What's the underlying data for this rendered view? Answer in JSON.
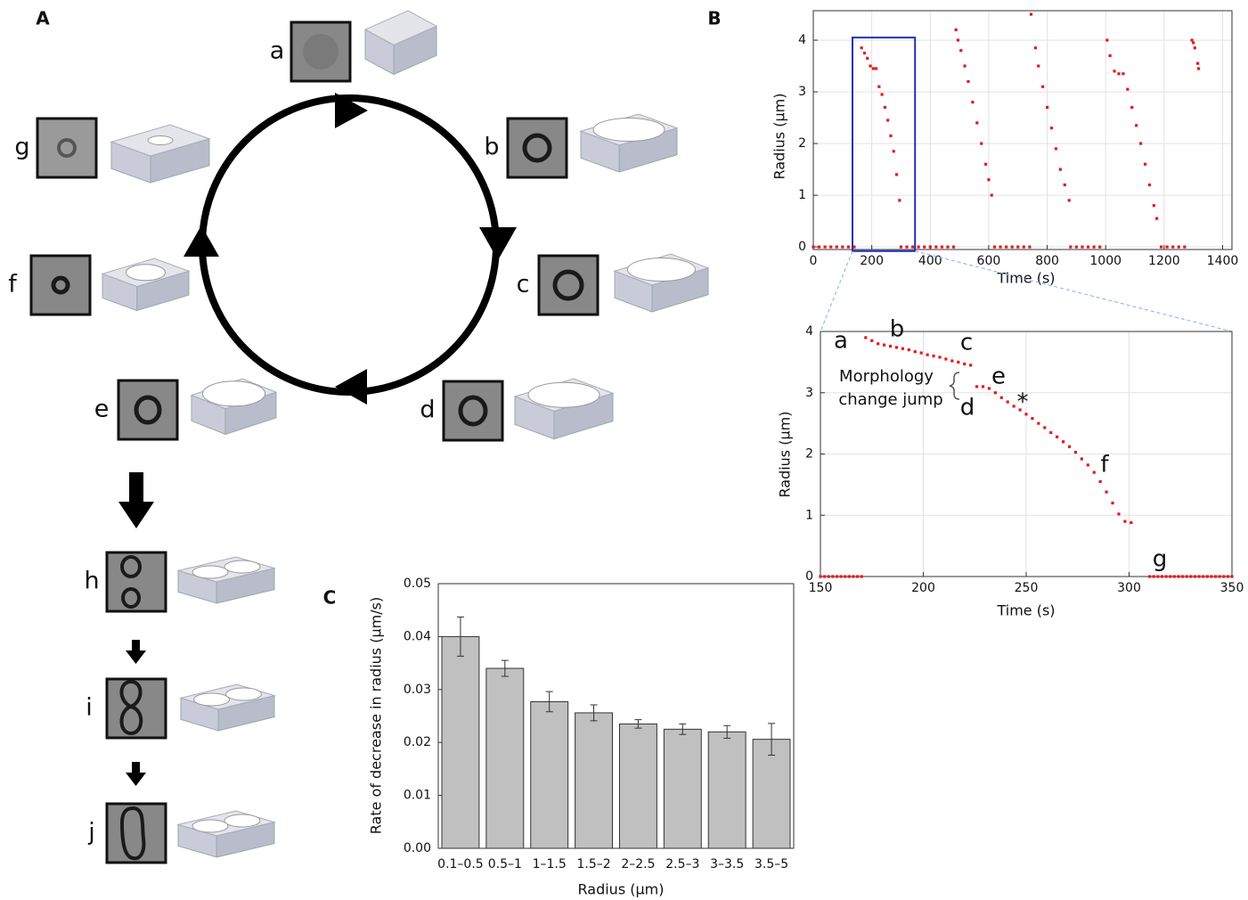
{
  "panel_labels": [
    "A",
    "B",
    "C"
  ],
  "diagram": {
    "labels": [
      "a",
      "b",
      "c",
      "d",
      "e",
      "f",
      "g",
      "h",
      "i",
      "j"
    ]
  },
  "chart_data": [
    {
      "type": "scatter",
      "xlabel": "Time (s)",
      "ylabel": "Radius (μm)",
      "xlim": [
        0,
        1432
      ],
      "ylim": [
        -0.05,
        4.57
      ],
      "xticks": [
        0,
        200,
        400,
        600,
        800,
        1000,
        1200,
        1400
      ],
      "yticks": [
        0,
        1,
        2,
        3,
        4
      ],
      "grid": true,
      "series": [
        {
          "color": "#e31a1c",
          "x": [
            0,
            20,
            40,
            60,
            80,
            100,
            120,
            140,
            165,
            175,
            185,
            195,
            205,
            215,
            225,
            235,
            245,
            255,
            265,
            275,
            285,
            295,
            300,
            320,
            340,
            360,
            380,
            400,
            420,
            440,
            460,
            480,
            488,
            495,
            505,
            518,
            530,
            545,
            560,
            575,
            590,
            600,
            610,
            620,
            640,
            660,
            680,
            700,
            720,
            740,
            745,
            760,
            770,
            785,
            800,
            815,
            830,
            845,
            860,
            875,
            880,
            900,
            920,
            940,
            960,
            980,
            1005,
            1015,
            1030,
            1045,
            1060,
            1075,
            1090,
            1105,
            1120,
            1135,
            1150,
            1165,
            1175,
            1190,
            1210,
            1230,
            1250,
            1270,
            1295,
            1300,
            1305,
            1315,
            1318
          ],
          "values": [
            0,
            0,
            0,
            0,
            0,
            0,
            0,
            0,
            3.85,
            3.75,
            3.65,
            3.5,
            3.45,
            3.45,
            3.1,
            2.95,
            2.7,
            2.45,
            2.15,
            1.85,
            1.4,
            0.9,
            0,
            0,
            0,
            0,
            0,
            0,
            0,
            0,
            0,
            0,
            4.2,
            4.0,
            3.8,
            3.5,
            3.2,
            2.8,
            2.4,
            2.0,
            1.6,
            1.3,
            1.0,
            0,
            0,
            0,
            0,
            0,
            0,
            0,
            4.5,
            3.85,
            3.5,
            3.1,
            2.7,
            2.3,
            1.9,
            1.5,
            1.2,
            0.9,
            0,
            0,
            0,
            0,
            0,
            0,
            4.0,
            3.7,
            3.4,
            3.35,
            3.35,
            3.05,
            2.7,
            2.35,
            2.0,
            1.6,
            1.2,
            0.8,
            0.55,
            0,
            0,
            0,
            0,
            0,
            4.0,
            3.95,
            3.85,
            3.55,
            3.45
          ]
        }
      ],
      "zoom_window": {
        "x": [
          134,
          348
        ],
        "y": [
          -0.08,
          4.05
        ],
        "color": "#1f2fb0"
      }
    },
    {
      "type": "scatter",
      "xlabel": "Time (s)",
      "ylabel": "Radius (μm)",
      "xlim": [
        150,
        350
      ],
      "ylim": [
        0,
        4
      ],
      "xticks": [
        150,
        200,
        250,
        300,
        350
      ],
      "yticks": [
        0,
        1,
        2,
        3,
        4
      ],
      "grid": true,
      "series": [
        {
          "color": "#e31a1c",
          "x": [
            150,
            152,
            154,
            156,
            158,
            160,
            162,
            164,
            166,
            168,
            170,
            172,
            175,
            178,
            181,
            184,
            187,
            190,
            193,
            196,
            199,
            202,
            205,
            208,
            211,
            214,
            217,
            220,
            223,
            226,
            229,
            232,
            235,
            238,
            241,
            244,
            247,
            250,
            253,
            256,
            259,
            262,
            265,
            268,
            271,
            274,
            277,
            280,
            283,
            286,
            289,
            292,
            295,
            298,
            301,
            310,
            312,
            314,
            316,
            318,
            320,
            322,
            324,
            326,
            328,
            330,
            332,
            334,
            336,
            338,
            340,
            342,
            344,
            346,
            348,
            350
          ],
          "values": [
            0,
            0,
            0,
            0,
            0,
            0,
            0,
            0,
            0,
            0,
            0,
            3.9,
            3.85,
            3.8,
            3.78,
            3.76,
            3.74,
            3.72,
            3.7,
            3.67,
            3.65,
            3.62,
            3.6,
            3.58,
            3.55,
            3.52,
            3.5,
            3.47,
            3.45,
            3.1,
            3.1,
            3.07,
            3.0,
            2.92,
            2.85,
            2.78,
            2.72,
            2.65,
            2.58,
            2.5,
            2.43,
            2.35,
            2.28,
            2.2,
            2.12,
            2.03,
            1.92,
            1.82,
            1.7,
            1.55,
            1.38,
            1.2,
            1.02,
            0.9,
            0.88,
            0,
            0,
            0,
            0,
            0,
            0,
            0,
            0,
            0,
            0,
            0,
            0,
            0,
            0,
            0,
            0,
            0,
            0,
            0,
            0,
            0
          ]
        }
      ],
      "annotations": [
        "a",
        "b",
        "c",
        "d",
        "e",
        "f",
        "g",
        "*",
        "Morphology",
        "change jump"
      ]
    },
    {
      "type": "bar",
      "xlabel": "Radius (μm)",
      "ylabel": "Rate of decrease in radius (μm/s)",
      "categories": [
        "0.1–0.5",
        "0.5–1",
        "1–1.5",
        "1.5–2",
        "2–2.5",
        "2.5–3",
        "3–3.5",
        "3.5–5"
      ],
      "values": [
        0.04,
        0.034,
        0.0277,
        0.0256,
        0.0235,
        0.0225,
        0.022,
        0.0206
      ],
      "errors": [
        0.0037,
        0.0015,
        0.0019,
        0.0015,
        0.0008,
        0.001,
        0.0012,
        0.003
      ],
      "color": "#c0c0c0",
      "ylim": [
        0,
        0.05
      ],
      "yticks": [
        {
          "value": 0,
          "label": "0.00"
        },
        {
          "value": 0.01,
          "label": "0.01"
        },
        {
          "value": 0.02,
          "label": "0.02"
        },
        {
          "value": 0.03,
          "label": "0.03"
        },
        {
          "value": 0.04,
          "label": "0.04"
        },
        {
          "value": 0.05,
          "label": "0.05"
        }
      ]
    }
  ]
}
